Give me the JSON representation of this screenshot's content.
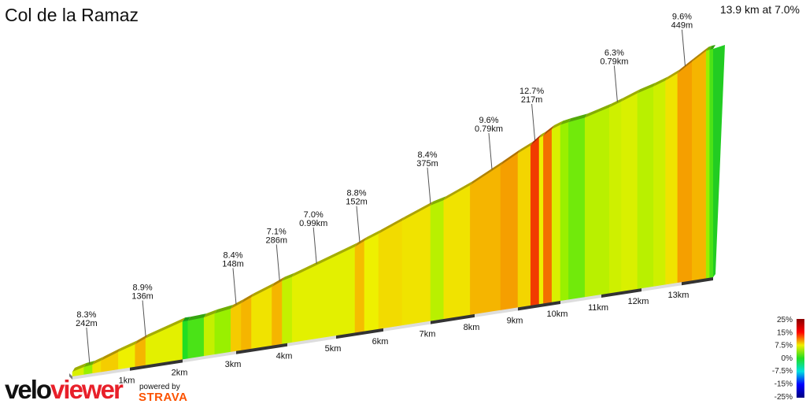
{
  "title": "Col de la Ramaz",
  "summary": "13.9 km at 7.0%",
  "branding": {
    "logo_part1": "velo",
    "logo_part2": "viewer",
    "powered_by": "powered by",
    "strava": "STRAVA"
  },
  "chart_data": {
    "type": "area",
    "title": "Col de la Ramaz",
    "xlabel": "",
    "ylabel": "",
    "x_unit": "km",
    "xlim": [
      0,
      13.9
    ],
    "x_ticks": [
      "1km",
      "2km",
      "3km",
      "4km",
      "5km",
      "6km",
      "7km",
      "8km",
      "9km",
      "10km",
      "11km",
      "12km",
      "13km"
    ],
    "segments": [
      [
        0,
        0.2,
        6
      ],
      [
        0.2,
        0.35,
        3
      ],
      [
        0.35,
        0.5,
        7.5
      ],
      [
        0.5,
        0.8,
        8.3
      ],
      [
        0.8,
        1.1,
        7
      ],
      [
        1.1,
        1.3,
        9
      ],
      [
        1.3,
        2.0,
        6.5
      ],
      [
        2.0,
        2.1,
        0
      ],
      [
        2.1,
        2.4,
        1
      ],
      [
        2.4,
        2.6,
        5
      ],
      [
        2.6,
        2.9,
        3
      ],
      [
        2.9,
        3.1,
        8.4
      ],
      [
        3.1,
        3.3,
        9
      ],
      [
        3.3,
        3.7,
        7.5
      ],
      [
        3.7,
        3.9,
        9
      ],
      [
        3.9,
        4.1,
        5
      ],
      [
        4.1,
        5.4,
        6.5
      ],
      [
        5.4,
        5.6,
        8.8
      ],
      [
        5.6,
        5.9,
        7
      ],
      [
        5.9,
        6.4,
        7.8
      ],
      [
        6.4,
        7.0,
        7.5
      ],
      [
        7.0,
        7.3,
        4.5
      ],
      [
        7.3,
        7.9,
        7.5
      ],
      [
        7.9,
        8.6,
        9
      ],
      [
        8.6,
        9.0,
        9.6
      ],
      [
        9.0,
        9.3,
        8
      ],
      [
        9.3,
        9.5,
        12.7
      ],
      [
        9.5,
        9.6,
        7
      ],
      [
        9.6,
        9.8,
        11
      ],
      [
        9.8,
        10.0,
        6
      ],
      [
        10.0,
        10.2,
        3
      ],
      [
        10.2,
        10.6,
        2
      ],
      [
        10.6,
        11.2,
        4.5
      ],
      [
        11.2,
        11.5,
        5.5
      ],
      [
        11.5,
        11.9,
        6
      ],
      [
        11.9,
        12.3,
        4.5
      ],
      [
        12.3,
        12.6,
        5.5
      ],
      [
        12.6,
        12.9,
        7.5
      ],
      [
        12.9,
        13.3,
        9.6
      ],
      [
        13.3,
        13.7,
        9
      ],
      [
        13.7,
        13.8,
        3
      ],
      [
        13.8,
        13.9,
        1
      ]
    ],
    "annotations": [
      {
        "km": 0.3,
        "grade": "8.3%",
        "length": "242m"
      },
      {
        "km": 1.3,
        "grade": "8.9%",
        "length": "136m"
      },
      {
        "km": 3.0,
        "grade": "8.4%",
        "length": "148m"
      },
      {
        "km": 3.85,
        "grade": "7.1%",
        "length": "286m"
      },
      {
        "km": 4.6,
        "grade": "7.0%",
        "length": "0.99km"
      },
      {
        "km": 5.5,
        "grade": "8.8%",
        "length": "152m"
      },
      {
        "km": 7.0,
        "grade": "8.4%",
        "length": "375m"
      },
      {
        "km": 8.4,
        "grade": "9.6%",
        "length": "0.79km"
      },
      {
        "km": 9.4,
        "grade": "12.7%",
        "length": "217m"
      },
      {
        "km": 11.4,
        "grade": "6.3%",
        "length": "0.79km"
      },
      {
        "km": 13.1,
        "grade": "9.6%",
        "length": "449m"
      }
    ],
    "legend": {
      "placement": "bottom-right",
      "labels": [
        "25%",
        "15%",
        "7.5%",
        "0%",
        "-7.5%",
        "-15%",
        "-25%"
      ],
      "colors": [
        "#8b0000",
        "#ff0000",
        "#f0f000",
        "#22dd22",
        "#00e0e0",
        "#0000ff",
        "#000080"
      ]
    }
  }
}
